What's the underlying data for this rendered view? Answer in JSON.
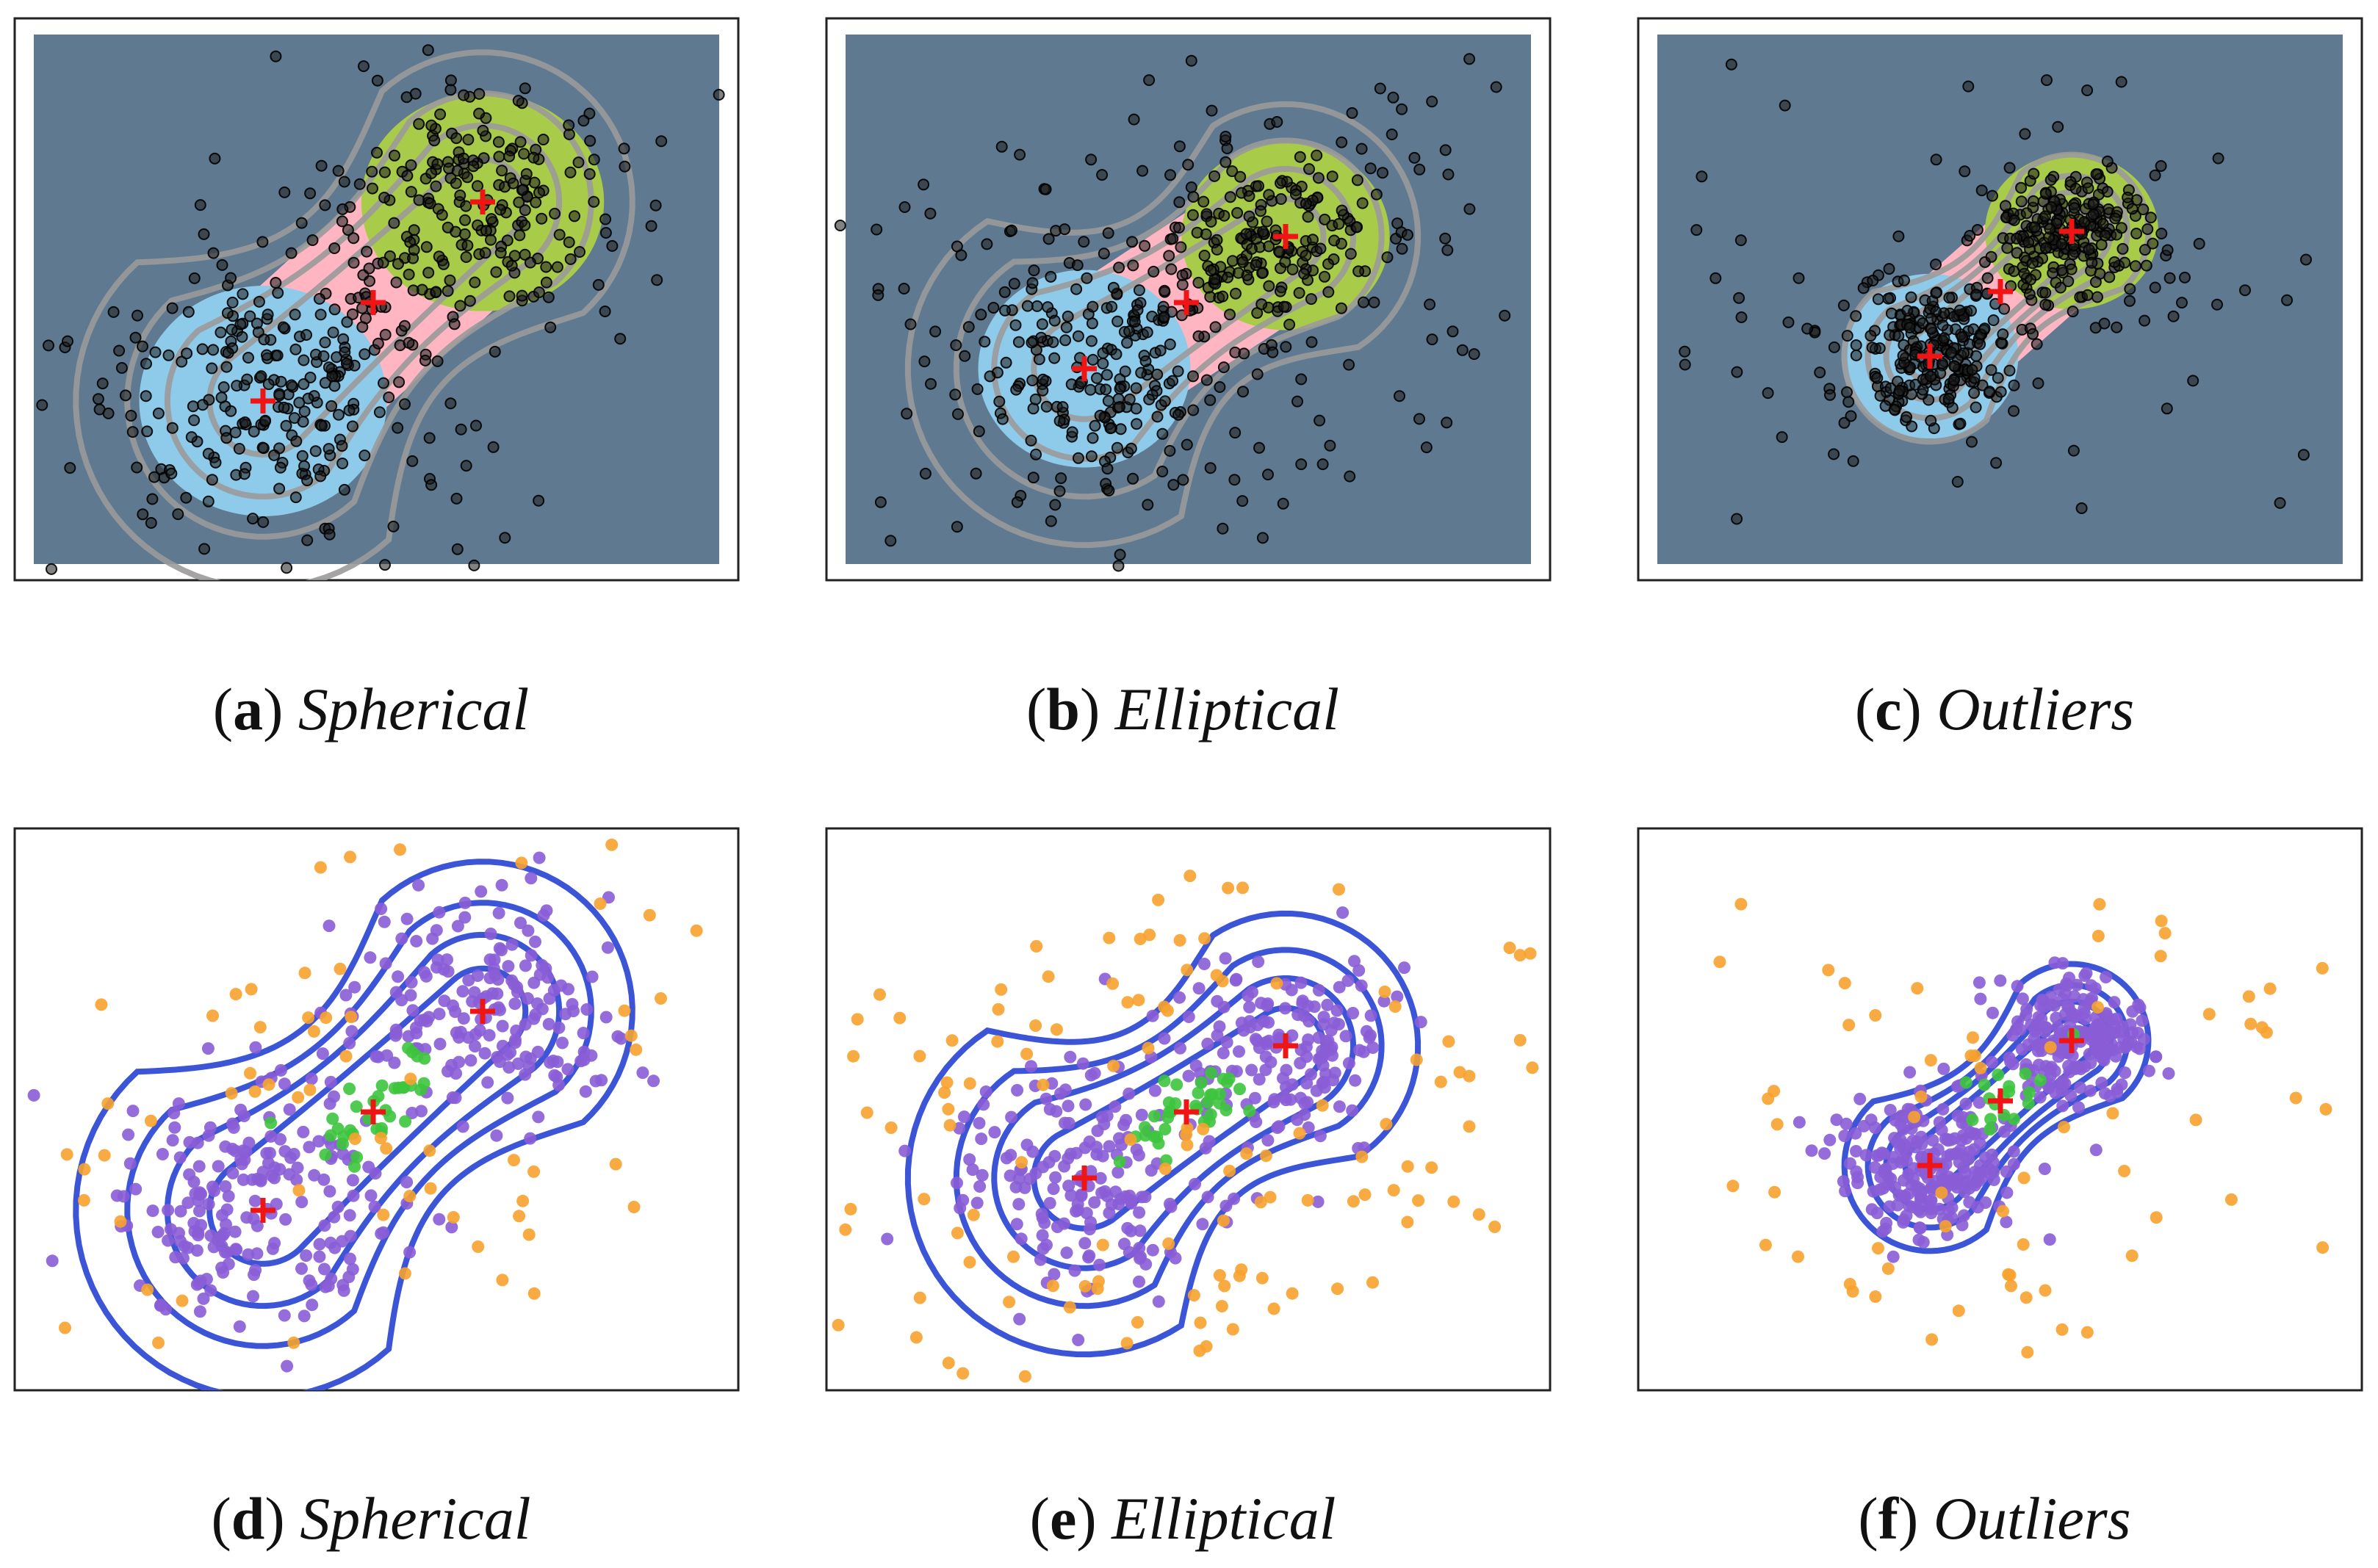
{
  "figure": {
    "panels": [
      {
        "id": "a",
        "letter": "a",
        "name": "Spherical",
        "style": "region",
        "variant": "spherical"
      },
      {
        "id": "b",
        "letter": "b",
        "name": "Elliptical",
        "style": "region",
        "variant": "elliptical"
      },
      {
        "id": "c",
        "letter": "c",
        "name": "Outliers",
        "style": "region",
        "variant": "outliers"
      },
      {
        "id": "d",
        "letter": "d",
        "name": "Spherical",
        "style": "points",
        "variant": "spherical"
      },
      {
        "id": "e",
        "letter": "e",
        "name": "Elliptical",
        "style": "points",
        "variant": "elliptical"
      },
      {
        "id": "f",
        "letter": "f",
        "name": "Outliers",
        "style": "points",
        "variant": "outliers"
      }
    ]
  },
  "colors": {
    "region_background": "#5F7A90",
    "region_blue": "#8ECBEA",
    "region_green": "#A9CB4A",
    "region_pink": "#FFB5C2",
    "region_contour": "#9A9A9A",
    "region_points": "#1C1C1C",
    "point_contour": "#3B55D6",
    "point_core": "#8A5DD6",
    "point_bridge": "#3DC43D",
    "point_outlier": "#F7A22E",
    "centroid_marker": "#F01515",
    "frame": "#222222"
  },
  "chart_data": [
    {
      "panel": "a",
      "type": "scatter",
      "title": "",
      "xlabel": "",
      "ylabel": "",
      "markers": [
        {
          "name": "centroid-lower",
          "x": -1.0,
          "y": -1.0
        },
        {
          "name": "centroid-upper",
          "x": 1.0,
          "y": 1.0
        },
        {
          "name": "centroid-middle",
          "x": 0.0,
          "y": 0.0
        }
      ]
    },
    {
      "panel": "b",
      "type": "scatter",
      "title": "",
      "xlabel": "",
      "ylabel": "",
      "markers": [
        {
          "name": "centroid-lower",
          "x": -1.0,
          "y": -1.0
        },
        {
          "name": "centroid-upper",
          "x": 1.0,
          "y": 1.0
        },
        {
          "name": "centroid-middle",
          "x": 0.0,
          "y": 0.0
        }
      ]
    },
    {
      "panel": "c",
      "type": "scatter",
      "title": "",
      "xlabel": "",
      "ylabel": "",
      "markers": [
        {
          "name": "centroid-lower",
          "x": -1.0,
          "y": -1.0
        },
        {
          "name": "centroid-upper",
          "x": 1.0,
          "y": 1.0
        },
        {
          "name": "centroid-middle",
          "x": 0.0,
          "y": 0.0
        }
      ]
    },
    {
      "panel": "d",
      "type": "scatter",
      "title": "",
      "xlabel": "",
      "ylabel": "",
      "markers": [
        {
          "name": "centroid-lower",
          "x": -1.0,
          "y": -1.0
        },
        {
          "name": "centroid-upper",
          "x": 1.0,
          "y": 1.0
        },
        {
          "name": "centroid-middle",
          "x": 0.0,
          "y": 0.0
        }
      ]
    },
    {
      "panel": "e",
      "type": "scatter",
      "title": "",
      "xlabel": "",
      "ylabel": "",
      "markers": [
        {
          "name": "centroid-lower",
          "x": -1.0,
          "y": -1.0
        },
        {
          "name": "centroid-upper",
          "x": 1.0,
          "y": 1.0
        },
        {
          "name": "centroid-middle",
          "x": 0.0,
          "y": 0.0
        }
      ]
    },
    {
      "panel": "f",
      "type": "scatter",
      "title": "",
      "xlabel": "",
      "ylabel": "",
      "markers": [
        {
          "name": "centroid-lower",
          "x": -1.0,
          "y": -1.0
        },
        {
          "name": "centroid-upper",
          "x": 1.0,
          "y": 1.0
        },
        {
          "name": "centroid-middle",
          "x": 0.0,
          "y": 0.0
        }
      ]
    }
  ]
}
